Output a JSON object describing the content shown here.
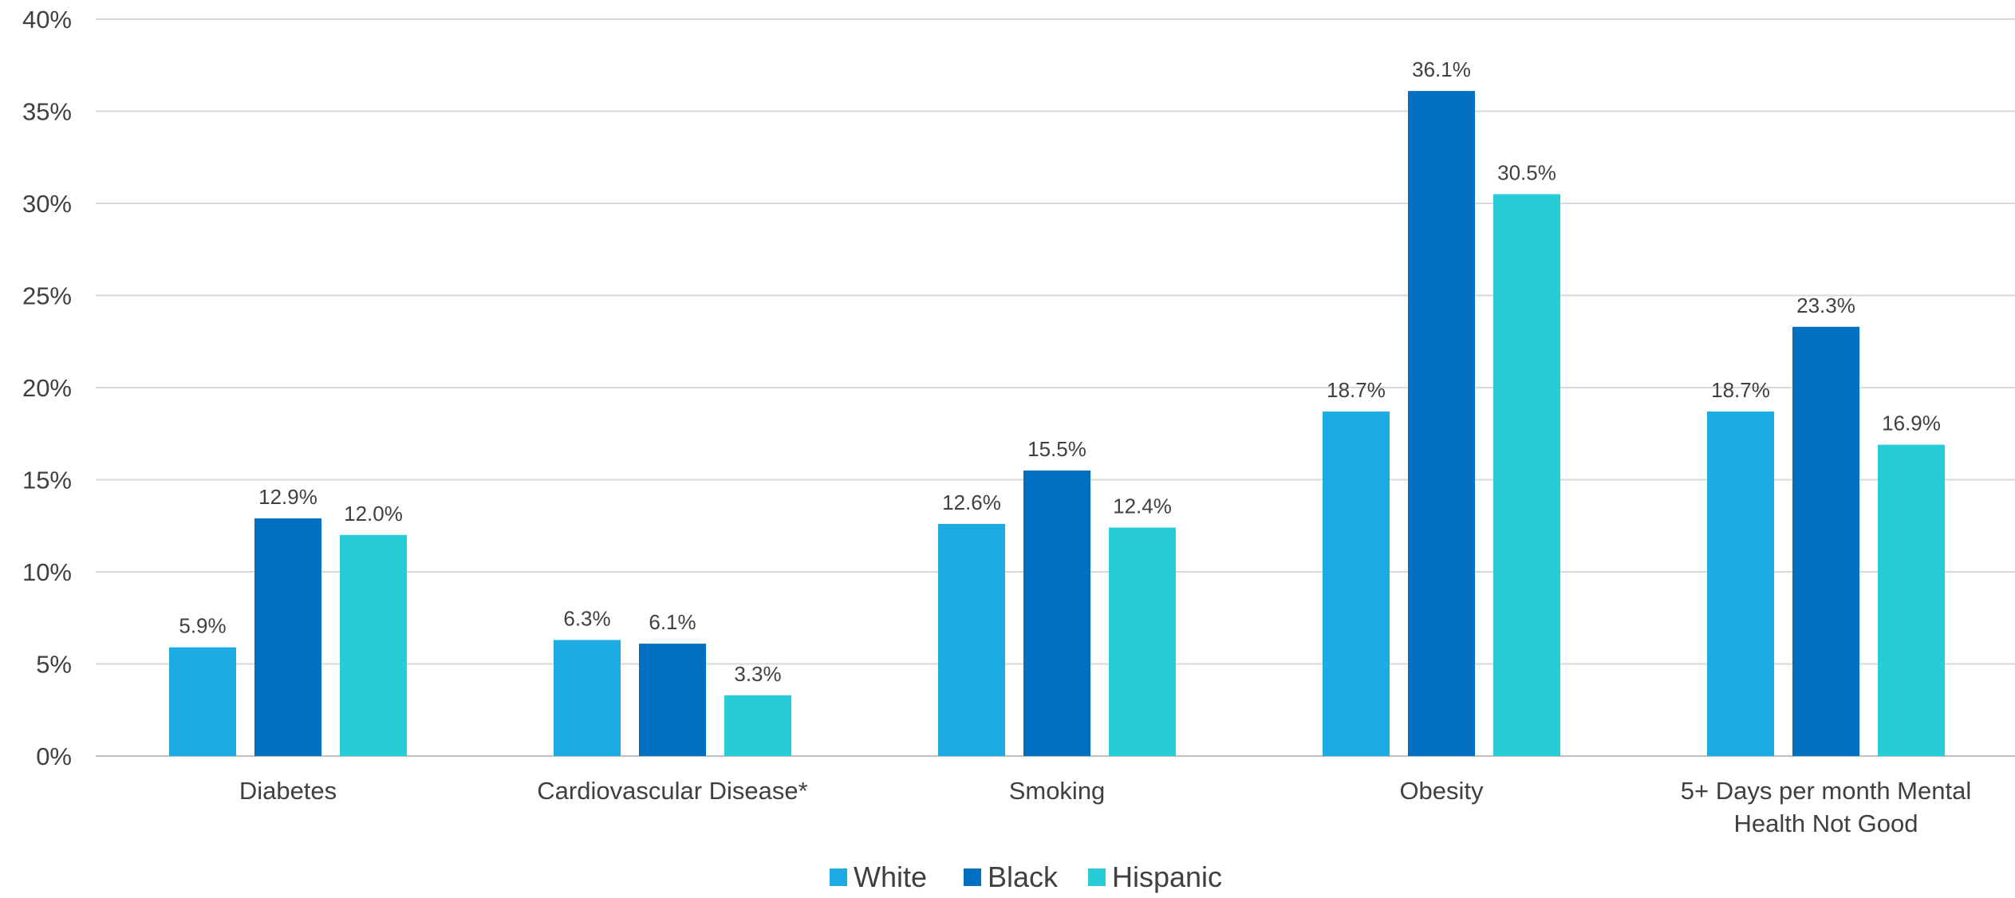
{
  "chart_data": {
    "type": "bar",
    "title": "",
    "xlabel": "",
    "ylabel": "",
    "ylim": [
      0,
      40
    ],
    "yticks": [
      "0%",
      "5%",
      "10%",
      "15%",
      "20%",
      "25%",
      "30%",
      "35%",
      "40%"
    ],
    "categories": [
      [
        "Diabetes"
      ],
      [
        "Cardiovascular Disease*"
      ],
      [
        "Smoking"
      ],
      [
        "Obesity"
      ],
      [
        "5+ Days per month Mental",
        "Health Not Good"
      ]
    ],
    "series": [
      {
        "name": "White",
        "color": "#1eaae2",
        "values": [
          5.9,
          6.3,
          12.6,
          18.7,
          18.7
        ],
        "labels": [
          "5.9%",
          "6.3%",
          "12.6%",
          "18.7%",
          "18.7%"
        ]
      },
      {
        "name": "Black",
        "color": "#0270c0",
        "values": [
          12.9,
          6.1,
          15.5,
          36.1,
          23.3
        ],
        "labels": [
          "12.9%",
          "6.1%",
          "15.5%",
          "36.1%",
          "23.3%"
        ]
      },
      {
        "name": "Hispanic",
        "color": "#27cdd6",
        "values": [
          12.0,
          3.3,
          12.4,
          30.5,
          16.9
        ],
        "labels": [
          "12.0%",
          "3.3%",
          "12.4%",
          "30.5%",
          "16.9%"
        ]
      }
    ],
    "grid": true,
    "legend_position": "bottom"
  }
}
